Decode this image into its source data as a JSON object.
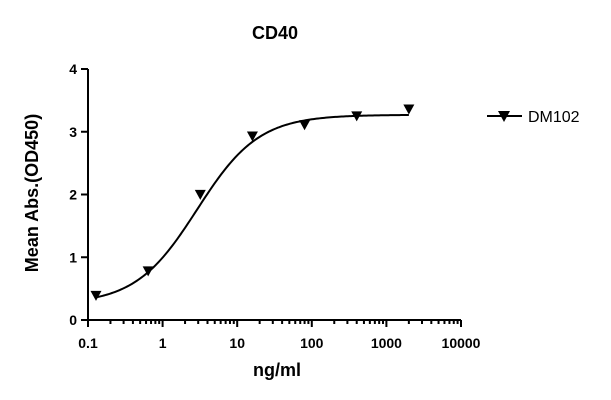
{
  "chart_data": {
    "type": "scatter",
    "title": "CD40",
    "xlabel": "ng/ml",
    "ylabel": "Mean Abs.(OD450)",
    "xscale": "log",
    "xlim": [
      0.1,
      10000
    ],
    "ylim": [
      0,
      4
    ],
    "xticks": [
      "0.1",
      "1",
      "10",
      "100",
      "1000",
      "10000"
    ],
    "yticks": [
      "0",
      "1",
      "2",
      "3",
      "4"
    ],
    "grid": false,
    "legend_position": "right",
    "series": [
      {
        "name": "DM102",
        "marker": "triangle-down",
        "color": "#000000",
        "x": [
          0.128,
          0.64,
          3.2,
          16,
          80,
          400,
          2000
        ],
        "y": [
          0.4,
          0.79,
          2.01,
          2.94,
          3.12,
          3.26,
          3.37
        ],
        "fit": {
          "model": "4PL",
          "bottom": 0.25,
          "top": 3.27,
          "ec50": 2.9,
          "hill": 1.05,
          "x_range": [
            0.128,
            2000
          ]
        }
      }
    ]
  }
}
